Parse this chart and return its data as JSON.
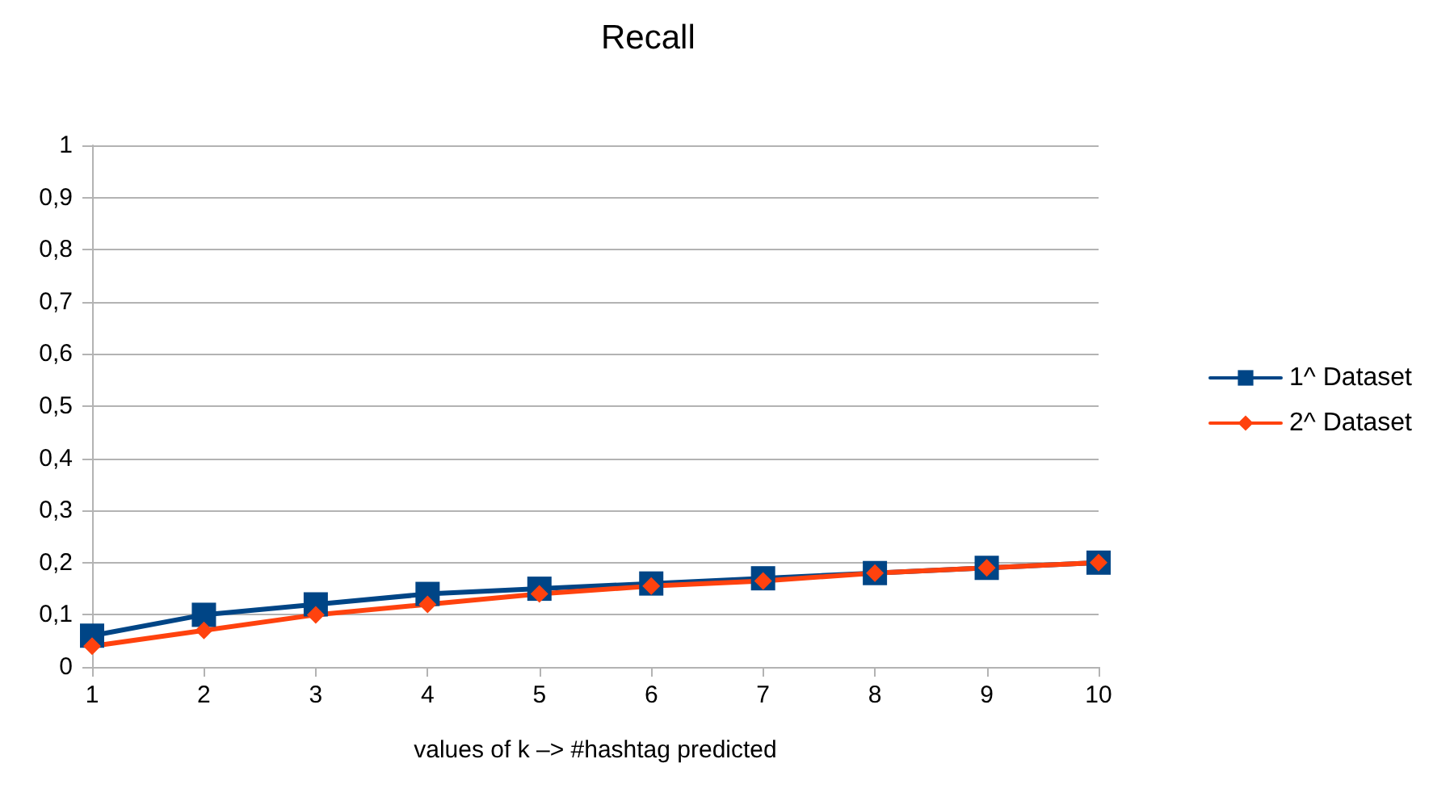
{
  "chart_data": {
    "type": "line",
    "title": "Recall",
    "xlabel": "values of k –> #hashtag predicted",
    "x": [
      1,
      2,
      3,
      4,
      5,
      6,
      7,
      8,
      9,
      10
    ],
    "series": [
      {
        "name": "1^ Dataset",
        "color": "#004586",
        "marker": "square",
        "values": [
          0.06,
          0.1,
          0.12,
          0.14,
          0.15,
          0.16,
          0.17,
          0.18,
          0.19,
          0.2
        ]
      },
      {
        "name": "2^ Dataset",
        "color": "#ff420e",
        "marker": "diamond",
        "values": [
          0.04,
          0.07,
          0.1,
          0.12,
          0.14,
          0.155,
          0.165,
          0.18,
          0.19,
          0.2
        ]
      }
    ],
    "xlim": [
      1,
      10
    ],
    "xticks": [
      1,
      2,
      3,
      4,
      5,
      6,
      7,
      8,
      9,
      10
    ],
    "ylim": [
      0,
      1
    ],
    "yticks": [
      0,
      {
        "value": 0.1,
        "label": "0,1"
      },
      {
        "value": 0.2,
        "label": "0,2"
      },
      {
        "value": 0.3,
        "label": "0,3"
      },
      {
        "value": 0.4,
        "label": "0,4"
      },
      {
        "value": 0.5,
        "label": "0,5"
      },
      {
        "value": 0.6,
        "label": "0,6"
      },
      {
        "value": 0.7,
        "label": "0,7"
      },
      {
        "value": 0.8,
        "label": "0,8"
      },
      {
        "value": 0.9,
        "label": "0,9"
      },
      1
    ],
    "grid": "y",
    "legend": "right",
    "line_style": "solid"
  }
}
